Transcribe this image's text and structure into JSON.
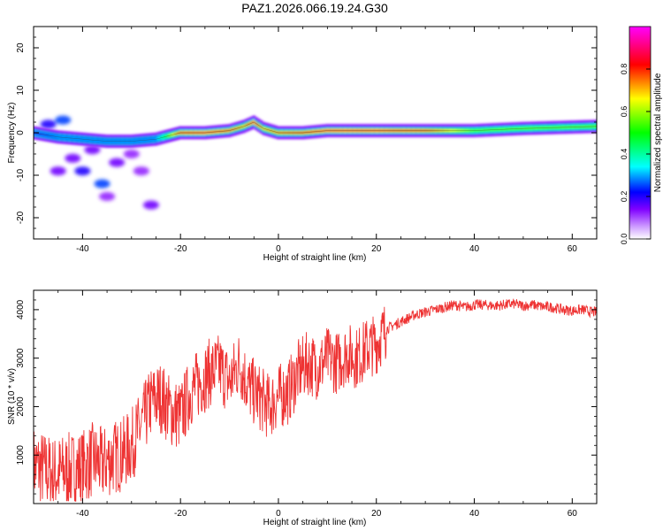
{
  "figure_title": "PAZ1.2026.066.19.24.G30",
  "chart_data": [
    {
      "type": "heatmap",
      "title": "PAZ1.2026.066.19.24.G30",
      "xlabel": "Height of straight line (km)",
      "ylabel": "Frequency (Hz)",
      "xlim": [
        -50,
        65
      ],
      "ylim": [
        -25,
        25
      ],
      "xticks": [
        -40,
        -20,
        0,
        20,
        40,
        60
      ],
      "yticks": [
        -20,
        -10,
        0,
        10,
        20
      ],
      "colorbar": {
        "label": "Normalized spectral amplitude",
        "range": [
          0.0,
          1.0
        ],
        "ticks": [
          0.0,
          0.2,
          0.4,
          0.6,
          0.8
        ],
        "tick_labels": [
          "0.0",
          "0.2",
          "0.4",
          "0.6",
          "0.8"
        ],
        "colormap": [
          "#ffffff",
          "#cc99ff",
          "#8000ff",
          "#0000ff",
          "#00ffff",
          "#00ff00",
          "#ffff00",
          "#ff0000",
          "#ff00ff"
        ]
      },
      "ridge": {
        "description": "dominant frequency track",
        "x": [
          -50,
          -45,
          -40,
          -35,
          -30,
          -25,
          -20,
          -15,
          -10,
          -7,
          -5,
          -3,
          0,
          5,
          10,
          15,
          20,
          30,
          40,
          50,
          65
        ],
        "y": [
          0,
          -1,
          -1.5,
          -2,
          -2,
          -1.5,
          0,
          0,
          0.5,
          1.5,
          2.5,
          1,
          0,
          0,
          0.5,
          0.5,
          0.5,
          0.5,
          0.5,
          1,
          1.5
        ],
        "amplitude": [
          0.25,
          0.3,
          0.3,
          0.3,
          0.3,
          0.3,
          0.8,
          0.85,
          0.8,
          0.7,
          0.85,
          0.7,
          0.75,
          0.8,
          0.85,
          0.85,
          0.85,
          0.8,
          0.55,
          0.55,
          0.55
        ]
      },
      "scatter_blobs": {
        "description": "low-amplitude noise patches",
        "points": [
          [
            -47,
            2,
            0.2
          ],
          [
            -44,
            3,
            0.25
          ],
          [
            -42,
            -6,
            0.15
          ],
          [
            -38,
            -4,
            0.15
          ],
          [
            -36,
            -12,
            0.25
          ],
          [
            -33,
            -7,
            0.15
          ],
          [
            -30,
            -5,
            0.12
          ],
          [
            -26,
            -17,
            0.15
          ],
          [
            -40,
            -9,
            0.2
          ],
          [
            -45,
            -9,
            0.15
          ],
          [
            -35,
            -15,
            0.12
          ],
          [
            -28,
            -9,
            0.12
          ]
        ]
      }
    },
    {
      "type": "line",
      "title": "",
      "xlabel": "Height of straight line (km)",
      "ylabel": "SNR (10 * v/v)",
      "xlim": [
        -50,
        65
      ],
      "ylim": [
        0,
        4400
      ],
      "xticks": [
        -40,
        -20,
        0,
        20,
        40,
        60
      ],
      "yticks": [
        1000,
        2000,
        3000,
        4000
      ],
      "line_color": "#ee3333",
      "series": [
        {
          "name": "SNR",
          "x": [
            -50,
            -48,
            -46,
            -44,
            -42,
            -40,
            -38,
            -36,
            -34,
            -32,
            -30,
            -28,
            -26,
            -24,
            -22,
            -20,
            -18,
            -16,
            -14,
            -12,
            -10,
            -8,
            -6,
            -4,
            -2,
            0,
            2,
            4,
            6,
            8,
            10,
            12,
            14,
            16,
            18,
            20,
            22,
            24,
            26,
            28,
            30,
            32,
            34,
            36,
            38,
            40,
            42,
            44,
            46,
            48,
            50,
            52,
            54,
            56,
            58,
            60,
            62,
            64
          ],
          "y": [
            800,
            700,
            600,
            650,
            700,
            750,
            900,
            800,
            950,
            1000,
            1200,
            1600,
            2100,
            2200,
            1900,
            1800,
            2300,
            2500,
            2700,
            2800,
            2500,
            2900,
            2400,
            2200,
            2000,
            2200,
            2300,
            2700,
            2900,
            2800,
            3000,
            2900,
            3100,
            3000,
            3200,
            3300,
            3600,
            3700,
            3800,
            3900,
            3950,
            4000,
            4050,
            4100,
            4050,
            4100,
            4100,
            4080,
            4100,
            4120,
            4080,
            4100,
            4060,
            4050,
            4000,
            3980,
            4000,
            3950
          ]
        }
      ]
    }
  ]
}
